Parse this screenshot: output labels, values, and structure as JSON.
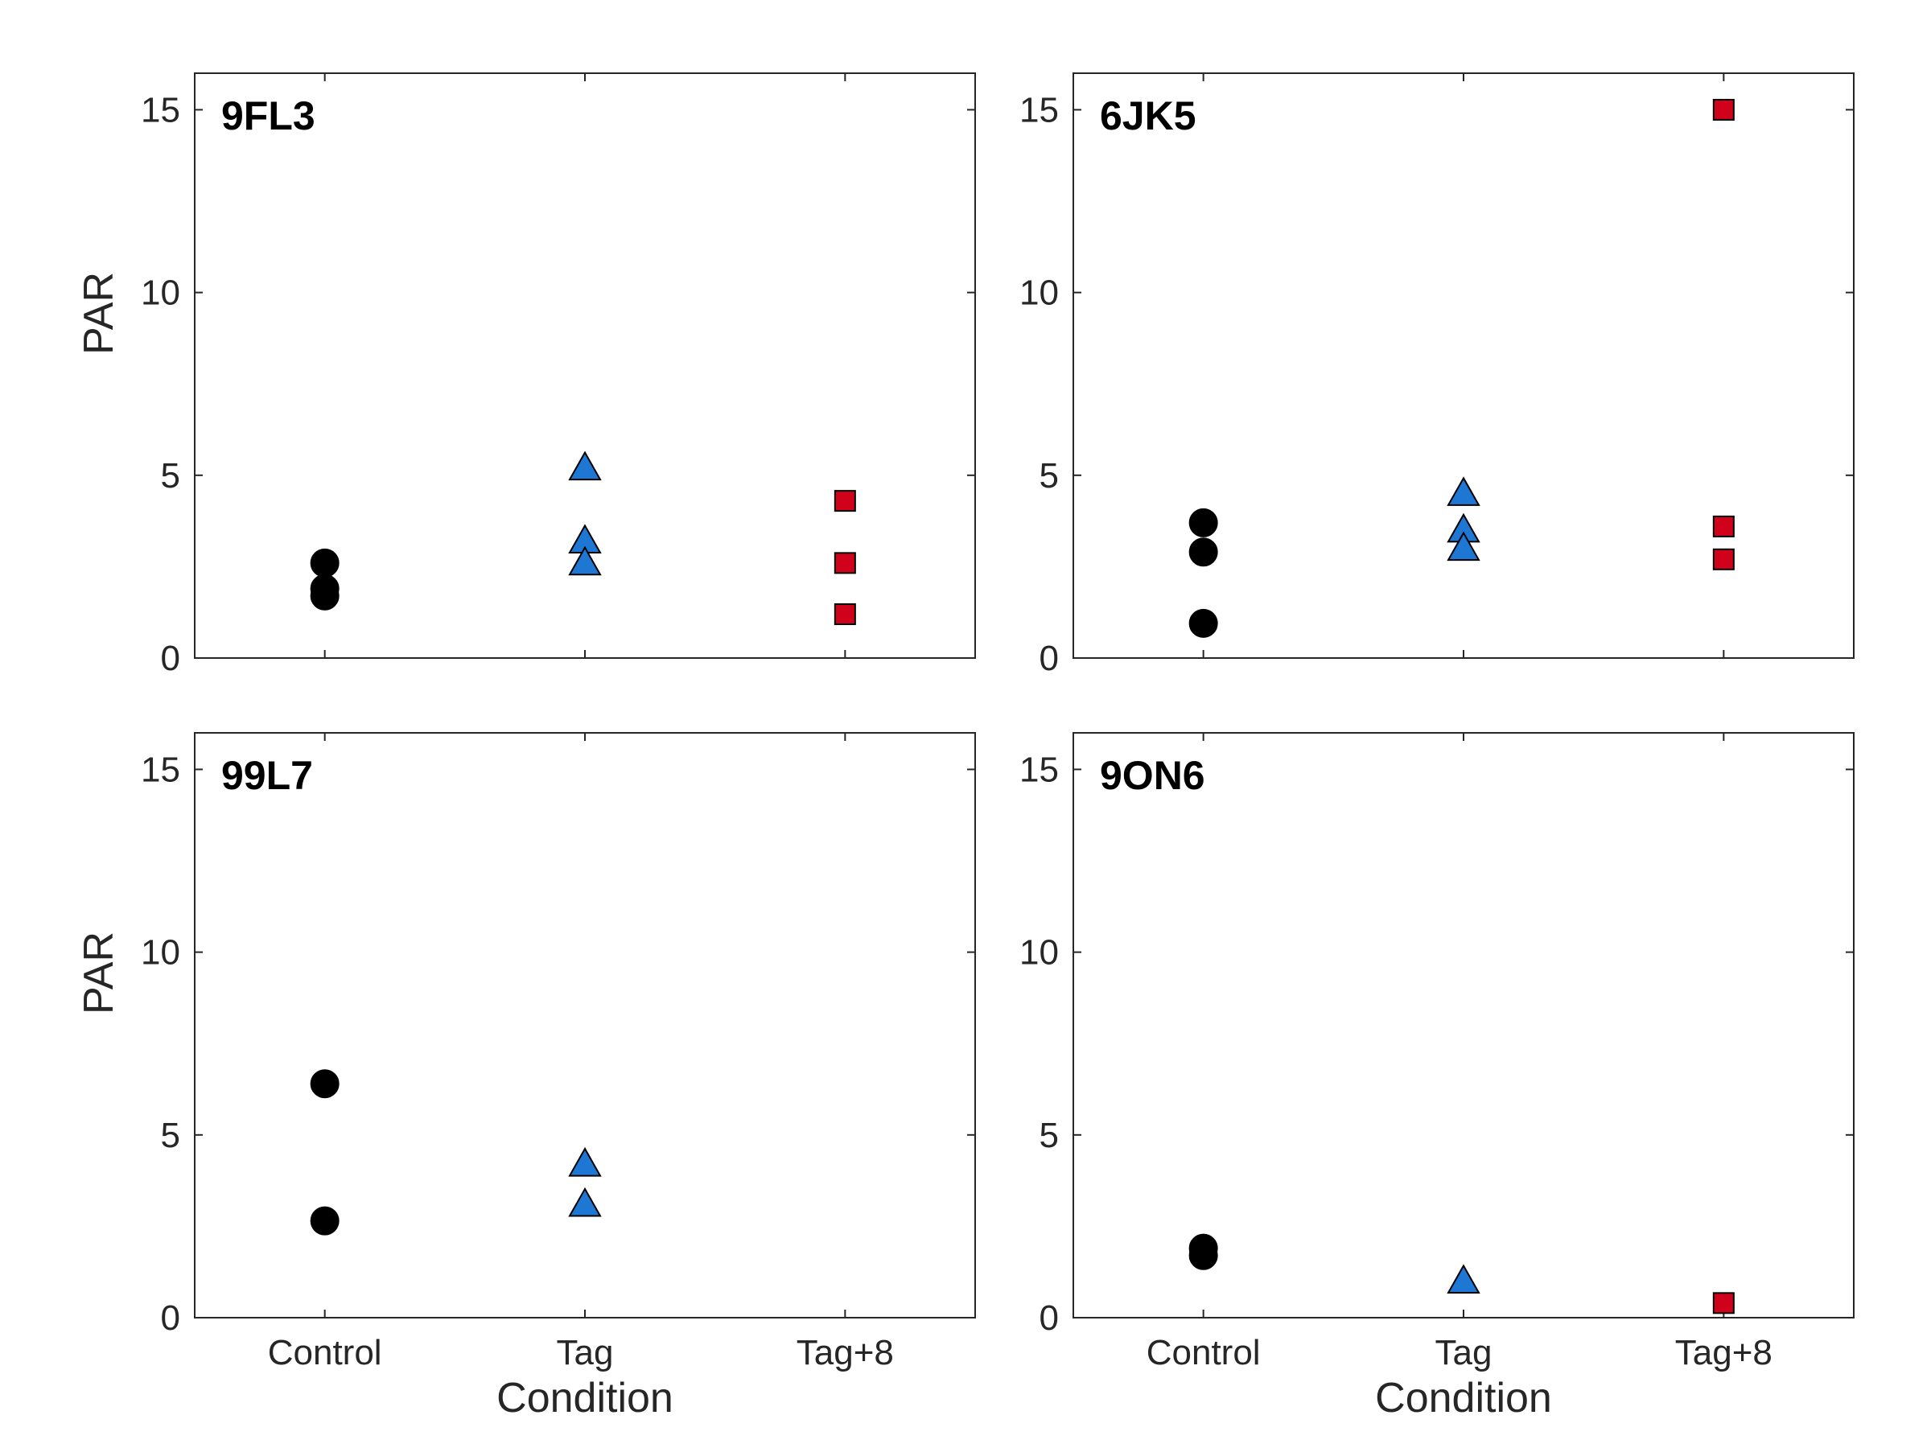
{
  "chart_data": [
    {
      "type": "scatter",
      "panel_label": "9FL3",
      "categories": [
        "Control",
        "Tag",
        "Tag+8"
      ],
      "ylabel": "PAR",
      "xlabel": "",
      "ylim": [
        0,
        16
      ],
      "yticks": [
        "0",
        "5",
        "10",
        "15"
      ],
      "show_xticklabels": false,
      "grid": false,
      "series": [
        {
          "category": "Control",
          "marker": "circle",
          "color": "#000000",
          "values": [
            2.6,
            1.9,
            1.7
          ]
        },
        {
          "category": "Tag",
          "marker": "triangle",
          "color": "#1f77d4",
          "values": [
            5.2,
            3.2,
            2.6
          ]
        },
        {
          "category": "Tag+8",
          "marker": "square",
          "color": "#d0021b",
          "values": [
            4.3,
            2.6,
            1.2
          ]
        }
      ]
    },
    {
      "type": "scatter",
      "panel_label": "6JK5",
      "categories": [
        "Control",
        "Tag",
        "Tag+8"
      ],
      "ylabel": "",
      "xlabel": "",
      "ylim": [
        0,
        16
      ],
      "yticks": [
        "0",
        "5",
        "10",
        "15"
      ],
      "show_xticklabels": false,
      "grid": false,
      "series": [
        {
          "category": "Control",
          "marker": "circle",
          "color": "#000000",
          "values": [
            3.7,
            2.9,
            0.95
          ]
        },
        {
          "category": "Tag",
          "marker": "triangle",
          "color": "#1f77d4",
          "values": [
            4.5,
            3.5,
            3.0
          ]
        },
        {
          "category": "Tag+8",
          "marker": "square",
          "color": "#d0021b",
          "values": [
            15.0,
            3.6,
            2.7
          ]
        }
      ]
    },
    {
      "type": "scatter",
      "panel_label": "99L7",
      "categories": [
        "Control",
        "Tag",
        "Tag+8"
      ],
      "ylabel": "PAR",
      "xlabel": "Condition",
      "ylim": [
        0,
        16
      ],
      "yticks": [
        "0",
        "5",
        "10",
        "15"
      ],
      "show_xticklabels": true,
      "grid": false,
      "series": [
        {
          "category": "Control",
          "marker": "circle",
          "color": "#000000",
          "values": [
            6.4,
            2.65
          ]
        },
        {
          "category": "Tag",
          "marker": "triangle",
          "color": "#1f77d4",
          "values": [
            4.2,
            3.1
          ]
        },
        {
          "category": "Tag+8",
          "marker": "square",
          "color": "#d0021b",
          "values": []
        }
      ]
    },
    {
      "type": "scatter",
      "panel_label": "9ON6",
      "categories": [
        "Control",
        "Tag",
        "Tag+8"
      ],
      "ylabel": "",
      "xlabel": "Condition",
      "ylim": [
        0,
        16
      ],
      "yticks": [
        "0",
        "5",
        "10",
        "15"
      ],
      "show_xticklabels": true,
      "grid": false,
      "series": [
        {
          "category": "Control",
          "marker": "circle",
          "color": "#000000",
          "values": [
            1.9,
            1.7
          ]
        },
        {
          "category": "Tag",
          "marker": "triangle",
          "color": "#1f77d4",
          "values": [
            1.0
          ]
        },
        {
          "category": "Tag+8",
          "marker": "square",
          "color": "#d0021b",
          "values": [
            0.4
          ]
        }
      ]
    }
  ]
}
